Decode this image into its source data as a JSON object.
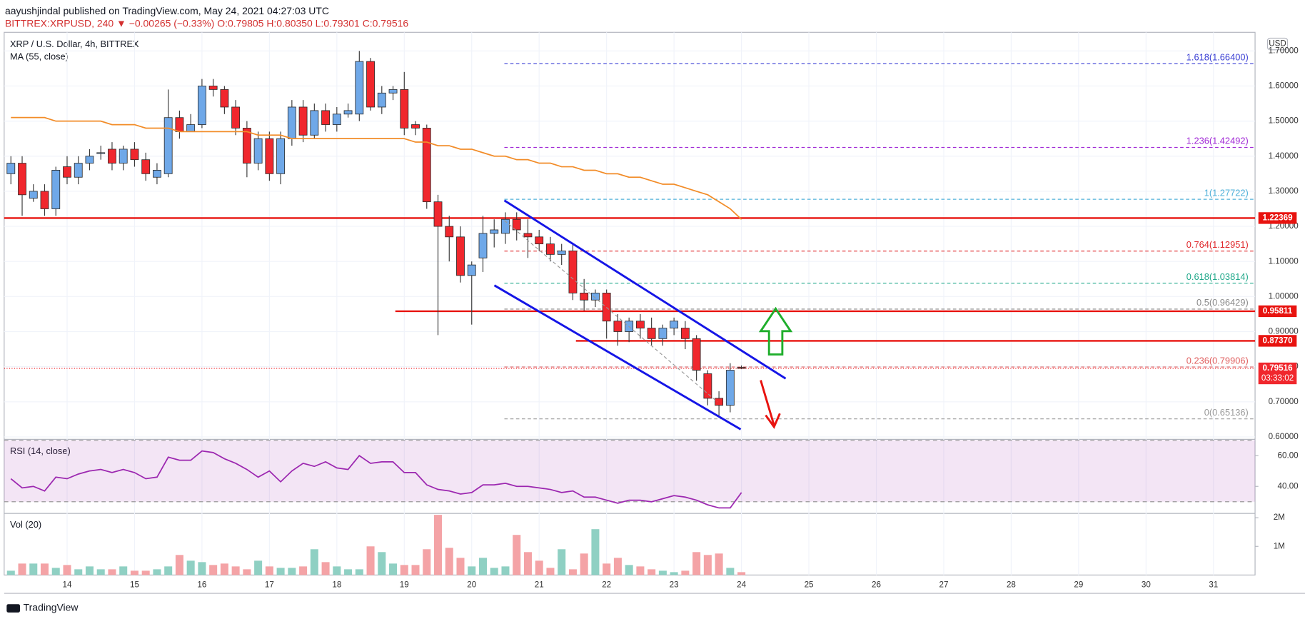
{
  "header": {
    "line1": "aayushjindal published on TradingView.com, May 24, 2021 04:27:03 UTC",
    "line2": "BITTREX:XRPUSD, 240 ▼ −0.00265 (−0.33%) O:0.79805 H:0.80350 L:0.79301 C:0.79516"
  },
  "footer": "TradingView",
  "chart_data": {
    "type": "candlestick",
    "title": "XRP / U.S. Dollar, 4h, BITTREX",
    "currency": "USD",
    "up_color": "#6fa8e8",
    "down_color": "#f0272d",
    "candles": {
      "open": [
        1.35,
        1.38,
        1.28,
        1.3,
        1.25,
        1.37,
        1.34,
        1.38,
        1.41,
        1.42,
        1.38,
        1.42,
        1.39,
        1.34,
        1.35,
        1.51,
        1.47,
        1.49,
        1.6,
        1.59,
        1.54,
        1.48,
        1.38,
        1.45,
        1.35,
        1.45,
        1.54,
        1.46,
        1.53,
        1.49,
        1.52,
        1.52,
        1.67,
        1.54,
        1.58,
        1.59,
        1.49,
        1.48,
        1.27,
        1.2,
        1.17,
        1.06,
        1.11,
        1.18,
        1.18,
        1.22,
        1.18,
        1.17,
        1.15,
        1.12,
        1.13,
        1.01,
        0.99,
        1.01,
        0.93,
        0.9,
        0.93,
        0.91,
        0.88,
        0.91,
        0.91,
        0.88,
        0.78,
        0.71,
        0.69,
        0.79805
      ],
      "high": [
        1.4,
        1.4,
        1.32,
        1.32,
        1.37,
        1.4,
        1.4,
        1.42,
        1.43,
        1.44,
        1.43,
        1.44,
        1.41,
        1.38,
        1.59,
        1.53,
        1.52,
        1.62,
        1.62,
        1.6,
        1.56,
        1.5,
        1.47,
        1.47,
        1.47,
        1.56,
        1.56,
        1.55,
        1.55,
        1.54,
        1.55,
        1.7,
        1.68,
        1.6,
        1.6,
        1.64,
        1.5,
        1.49,
        1.29,
        1.23,
        1.2,
        1.1,
        1.23,
        1.22,
        1.24,
        1.24,
        1.22,
        1.19,
        1.17,
        1.15,
        1.15,
        1.05,
        1.02,
        1.02,
        0.95,
        0.94,
        0.95,
        0.94,
        0.92,
        0.94,
        0.93,
        0.89,
        0.79,
        0.73,
        0.81,
        0.8035
      ],
      "low": [
        1.32,
        1.23,
        1.27,
        1.23,
        1.23,
        1.32,
        1.32,
        1.36,
        1.39,
        1.36,
        1.36,
        1.37,
        1.33,
        1.32,
        1.34,
        1.45,
        1.47,
        1.48,
        1.57,
        1.52,
        1.46,
        1.34,
        1.36,
        1.33,
        1.32,
        1.43,
        1.44,
        1.45,
        1.47,
        1.47,
        1.51,
        1.5,
        1.53,
        1.52,
        1.56,
        1.46,
        1.46,
        1.25,
        0.89,
        1.1,
        1.04,
        0.92,
        1.07,
        1.14,
        1.15,
        1.16,
        1.11,
        1.13,
        1.1,
        1.09,
        0.99,
        0.96,
        0.97,
        0.88,
        0.86,
        0.87,
        0.88,
        0.86,
        0.86,
        0.89,
        0.85,
        0.76,
        0.69,
        0.66,
        0.67,
        0.79301
      ],
      "close": [
        1.38,
        1.29,
        1.3,
        1.25,
        1.36,
        1.34,
        1.38,
        1.4,
        1.41,
        1.38,
        1.42,
        1.39,
        1.35,
        1.36,
        1.51,
        1.47,
        1.49,
        1.6,
        1.59,
        1.54,
        1.48,
        1.38,
        1.45,
        1.35,
        1.45,
        1.54,
        1.46,
        1.53,
        1.49,
        1.52,
        1.53,
        1.67,
        1.54,
        1.58,
        1.59,
        1.48,
        1.48,
        1.27,
        1.2,
        1.17,
        1.06,
        1.09,
        1.18,
        1.19,
        1.22,
        1.19,
        1.17,
        1.15,
        1.12,
        1.13,
        1.01,
        0.99,
        1.01,
        0.93,
        0.9,
        0.93,
        0.91,
        0.88,
        0.91,
        0.93,
        0.88,
        0.79,
        0.71,
        0.69,
        0.79,
        0.79516
      ]
    },
    "ma": {
      "name": "MA (55, close)",
      "color": "#f28c28",
      "values": [
        1.51,
        1.51,
        1.51,
        1.51,
        1.5,
        1.5,
        1.5,
        1.5,
        1.5,
        1.49,
        1.49,
        1.49,
        1.48,
        1.48,
        1.48,
        1.47,
        1.47,
        1.47,
        1.47,
        1.47,
        1.47,
        1.47,
        1.46,
        1.46,
        1.46,
        1.45,
        1.45,
        1.45,
        1.45,
        1.45,
        1.45,
        1.45,
        1.45,
        1.45,
        1.45,
        1.45,
        1.44,
        1.44,
        1.43,
        1.43,
        1.42,
        1.42,
        1.41,
        1.4,
        1.4,
        1.39,
        1.39,
        1.38,
        1.38,
        1.37,
        1.37,
        1.36,
        1.36,
        1.35,
        1.35,
        1.34,
        1.34,
        1.33,
        1.32,
        1.32,
        1.31,
        1.3,
        1.29,
        1.27,
        1.25,
        1.22
      ]
    },
    "xlim": [
      -0.6,
      110.7
    ],
    "xticks": [
      {
        "value": 5,
        "label": "14"
      },
      {
        "value": 11,
        "label": "15"
      },
      {
        "value": 17,
        "label": "16"
      },
      {
        "value": 23,
        "label": "17"
      },
      {
        "value": 29,
        "label": "18"
      },
      {
        "value": 35,
        "label": "19"
      },
      {
        "value": 41,
        "label": "20"
      },
      {
        "value": 47,
        "label": "21"
      },
      {
        "value": 53,
        "label": "22"
      },
      {
        "value": 59,
        "label": "23"
      },
      {
        "value": 65,
        "label": "24"
      },
      {
        "value": 71,
        "label": "25"
      },
      {
        "value": 77,
        "label": "26"
      },
      {
        "value": 83,
        "label": "27"
      },
      {
        "value": 89,
        "label": "28"
      },
      {
        "value": 95,
        "label": "29"
      },
      {
        "value": 101,
        "label": "30"
      },
      {
        "value": 107,
        "label": "31"
      }
    ],
    "ylim": [
      0.593,
      1.753
    ],
    "yticks": [
      {
        "value": 0.6,
        "label": "0.60000"
      },
      {
        "value": 0.7,
        "label": "0.70000"
      },
      {
        "value": 0.8,
        "label": "0.80000"
      },
      {
        "value": 0.9,
        "label": "0.90000"
      },
      {
        "value": 1.0,
        "label": "1.00000"
      },
      {
        "value": 1.1,
        "label": "1.10000"
      },
      {
        "value": 1.2,
        "label": "1.20000"
      },
      {
        "value": 1.3,
        "label": "1.30000"
      },
      {
        "value": 1.4,
        "label": "1.40000"
      },
      {
        "value": 1.5,
        "label": "1.50000"
      },
      {
        "value": 1.6,
        "label": "1.60000"
      },
      {
        "value": 1.7,
        "label": "1.70000"
      }
    ],
    "grid": true,
    "levels": [
      {
        "value": 1.22369,
        "label": "1.22369"
      },
      {
        "value": 0.95811,
        "label": "0.95811"
      },
      {
        "value": 0.8737,
        "label": "0.87370"
      }
    ],
    "level_color": "#e8130f",
    "last_price": {
      "value": 0.79516,
      "label": "0.79516",
      "countdown": "03:33:02"
    },
    "fib": [
      {
        "value": 1.664,
        "label": "1.618(1.66400)",
        "color": "#3a3fd4"
      },
      {
        "value": 1.42492,
        "label": "1.236(1.42492)",
        "color": "#a12ad6"
      },
      {
        "value": 1.27722,
        "label": "1(1.27722)",
        "color": "#4fb0d9"
      },
      {
        "value": 1.12951,
        "label": "0.764(1.12951)",
        "color": "#e0282b"
      },
      {
        "value": 1.03814,
        "label": "0.618(1.03814)",
        "color": "#20a88a"
      },
      {
        "value": 0.96429,
        "label": "0.5(0.96429)",
        "color": "#8a8a8a"
      },
      {
        "value": 0.79906,
        "label": "0.236(0.79906)",
        "color": "#e06060"
      },
      {
        "value": 0.65136,
        "label": "0(0.65136)",
        "color": "#9a9a9a"
      }
    ],
    "rsi": {
      "name": "RSI (14, close)",
      "color": "#9c27b0",
      "ylim": [
        22.4,
        70.6
      ],
      "yticks": [
        {
          "value": 40,
          "label": "40.00"
        },
        {
          "value": 60,
          "label": "60.00"
        }
      ],
      "band": [
        30,
        70
      ],
      "values": [
        45,
        39,
        40,
        37,
        46,
        45,
        48,
        50,
        51,
        49,
        51,
        49,
        45,
        46,
        59,
        57,
        57,
        63,
        62,
        58,
        55,
        51,
        46,
        50,
        43,
        50,
        55,
        53,
        56,
        52,
        51,
        60,
        55,
        56,
        56,
        49,
        49,
        41,
        38,
        37,
        35,
        36,
        41,
        41,
        42,
        40,
        40,
        39,
        38,
        36,
        37,
        33,
        33,
        31,
        29,
        31,
        31,
        30,
        32,
        34,
        33,
        31,
        28,
        26,
        26,
        36
      ]
    },
    "volume": {
      "name": "Vol (20)",
      "up_color": "#8fd0c3",
      "down_color": "#f4a3a6",
      "ylim": [
        0,
        2150000
      ],
      "yticks": [
        {
          "value": 1000000,
          "label": "1M"
        },
        {
          "value": 2000000,
          "label": "2M"
        }
      ],
      "values": [
        150000,
        400000,
        400000,
        400000,
        250000,
        350000,
        200000,
        300000,
        200000,
        200000,
        300000,
        150000,
        150000,
        200000,
        300000,
        700000,
        500000,
        450000,
        350000,
        400000,
        300000,
        200000,
        500000,
        300000,
        250000,
        250000,
        300000,
        900000,
        450000,
        300000,
        200000,
        200000,
        1000000,
        800000,
        400000,
        350000,
        350000,
        900000,
        2100000,
        950000,
        600000,
        300000,
        600000,
        250000,
        300000,
        1400000,
        800000,
        500000,
        250000,
        900000,
        200000,
        750000,
        1600000,
        400000,
        600000,
        350000,
        300000,
        200000,
        150000,
        100000,
        150000,
        800000,
        700000,
        750000,
        250000,
        100000
      ]
    }
  }
}
